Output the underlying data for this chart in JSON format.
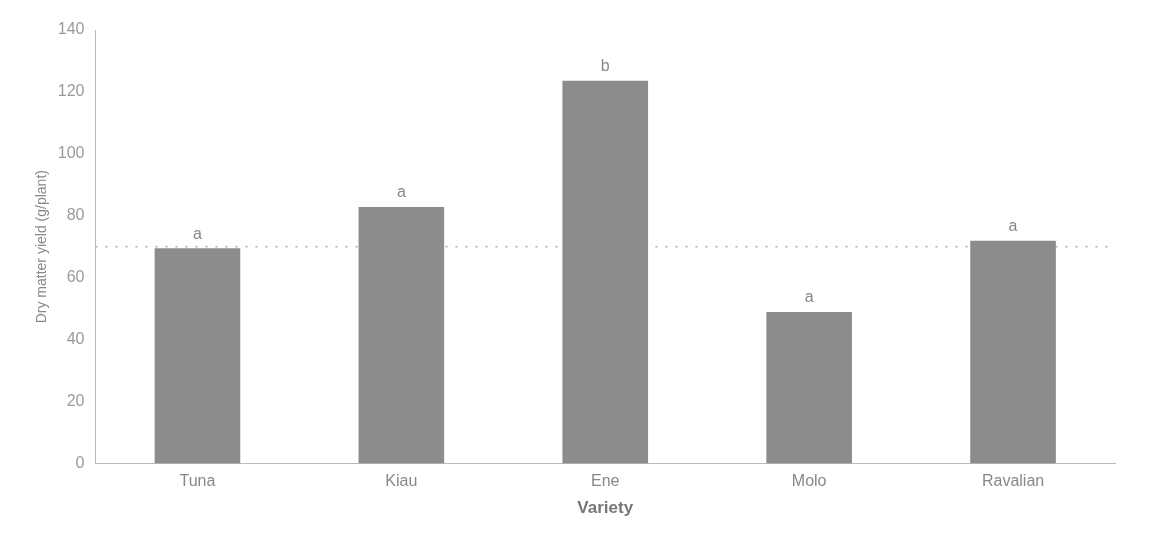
{
  "chart_data": {
    "type": "bar",
    "xlabel": "Variety",
    "ylabel": "Dry matter yield (g/plant)",
    "categories": [
      "Tuna",
      "Kiau",
      "Ene",
      "Molo",
      "Ravalian"
    ],
    "values": [
      69.5,
      82.8,
      123.6,
      48.9,
      71.9
    ],
    "value_labels": [
      "a",
      "a",
      "b",
      "a",
      "a"
    ],
    "color": "#8c8c8c",
    "ylim": [
      0,
      140
    ],
    "yticks": [
      0,
      20,
      40,
      60,
      80,
      100,
      120,
      140
    ],
    "ref_lines": [
      {
        "axis": "y",
        "value": 70,
        "line_style": "dotted",
        "color": "#aaaaaa"
      }
    ],
    "grid": false,
    "legend": false
  }
}
